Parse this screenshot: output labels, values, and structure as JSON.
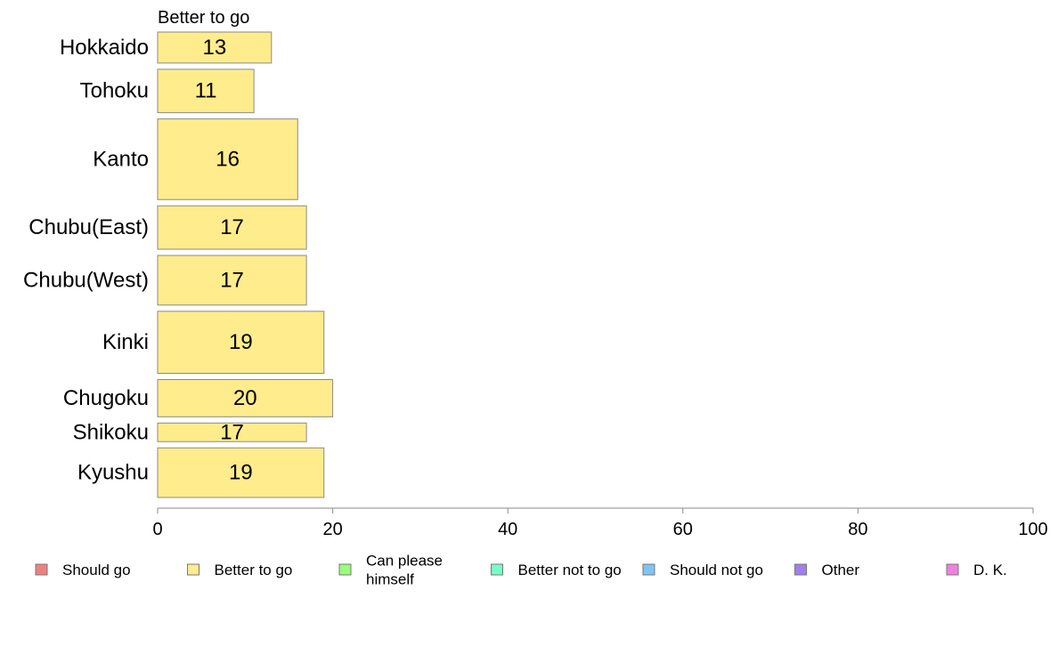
{
  "chart_data": {
    "type": "bar",
    "orientation": "horizontal",
    "series_label": "Better to go",
    "categories": [
      "Hokkaido",
      "Tohoku",
      "Kanto",
      "Chubu(East)",
      "Chubu(West)",
      "Kinki",
      "Chugoku",
      "Shikoku",
      "Kyushu"
    ],
    "values": [
      13,
      11,
      16,
      17,
      17,
      19,
      20,
      17,
      19
    ],
    "value_labels": [
      "13",
      "11",
      "16",
      "17",
      "17",
      "19",
      "20",
      "17",
      "19"
    ],
    "category_weights": [
      5,
      7,
      13,
      7,
      8,
      10,
      6,
      3,
      8
    ],
    "xlim": [
      0,
      100
    ],
    "xticks": [
      0,
      20,
      40,
      60,
      80,
      100
    ],
    "xtick_labels": [
      "0",
      "20",
      "40",
      "60",
      "80",
      "100"
    ],
    "grid": false,
    "bar_color": "#ffec8c",
    "legend_position": "bottom",
    "legend": [
      {
        "label": "Should go",
        "color": "#f08080"
      },
      {
        "label": "Better to go",
        "color": "#ffec8c"
      },
      {
        "label": "Can please himself",
        "color": "#99ff77"
      },
      {
        "label": "Better not to go",
        "color": "#77ffc8"
      },
      {
        "label": "Should not go",
        "color": "#80c4f4"
      },
      {
        "label": "Other",
        "color": "#a080f0"
      },
      {
        "label": "D. K.",
        "color": "#f080e0"
      }
    ]
  }
}
